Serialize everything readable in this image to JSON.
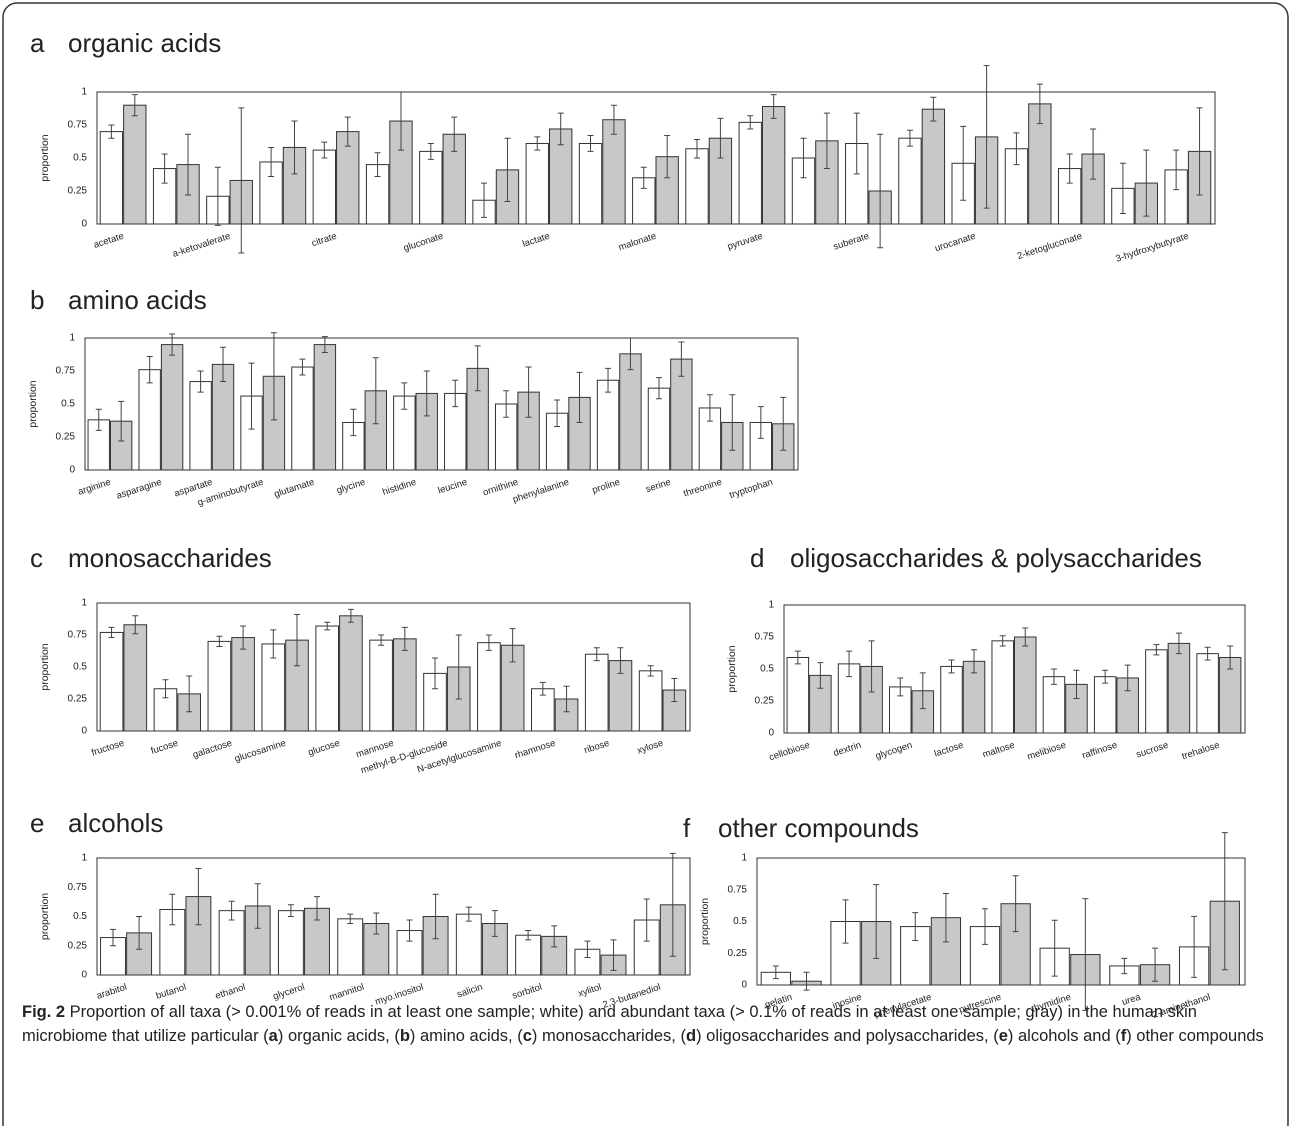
{
  "chart_data": [
    {
      "type": "bar",
      "label": "a",
      "title": "organic acids",
      "ylabel": "proportion",
      "categories": [
        "acetate",
        null,
        "a-ketovalerate",
        null,
        "citrate",
        null,
        "gluconate",
        null,
        "lactate",
        null,
        "malonate",
        null,
        "pyruvate",
        null,
        "suberate",
        null,
        "urocanate",
        null,
        "2-ketogluconate",
        null,
        "3-hydroxybutyrate"
      ],
      "series": [
        {
          "color": "#ffffff",
          "values": [
            0.7,
            0.42,
            0.21,
            0.47,
            0.56,
            0.45,
            0.55,
            0.18,
            0.61,
            0.61,
            0.35,
            0.57,
            0.77,
            0.5,
            0.61,
            0.65,
            0.46,
            0.57,
            0.42,
            0.27,
            0.41
          ],
          "errors": [
            0.05,
            0.11,
            0.22,
            0.11,
            0.06,
            0.09,
            0.06,
            0.13,
            0.05,
            0.06,
            0.08,
            0.07,
            0.05,
            0.15,
            0.23,
            0.06,
            0.28,
            0.12,
            0.11,
            0.19,
            0.15
          ]
        },
        {
          "color": "#c8c8c8",
          "values": [
            0.9,
            0.45,
            0.33,
            0.58,
            0.7,
            0.78,
            0.68,
            0.41,
            0.72,
            0.79,
            0.51,
            0.65,
            0.89,
            0.63,
            0.25,
            0.87,
            0.66,
            0.91,
            0.53,
            0.31,
            0.55
          ],
          "errors": [
            0.08,
            0.23,
            0.55,
            0.2,
            0.11,
            0.22,
            0.13,
            0.24,
            0.12,
            0.11,
            0.16,
            0.15,
            0.09,
            0.21,
            0.43,
            0.09,
            0.54,
            0.15,
            0.19,
            0.25,
            0.33
          ]
        }
      ],
      "ylim": [
        0,
        1
      ],
      "yticks": [
        0,
        0.25,
        0.5,
        0.75,
        1
      ]
    },
    {
      "type": "bar",
      "label": "b",
      "title": "amino acids",
      "ylabel": "proportion",
      "categories": [
        "arginine",
        "asparagine",
        "aspartate",
        "g-aminobutyrate",
        "glutamate",
        "glycine",
        "histidine",
        "leucine",
        "ornithine",
        "phenylalanine",
        "proline",
        "serine",
        "threonine",
        "tryptophan"
      ],
      "series": [
        {
          "color": "#ffffff",
          "values": [
            0.38,
            0.76,
            0.67,
            0.56,
            0.78,
            0.36,
            0.56,
            0.58,
            0.5,
            0.43,
            0.68,
            0.62,
            0.47,
            0.36
          ],
          "errors": [
            0.08,
            0.1,
            0.08,
            0.25,
            0.06,
            0.1,
            0.1,
            0.1,
            0.1,
            0.1,
            0.09,
            0.08,
            0.1,
            0.12
          ]
        },
        {
          "color": "#c8c8c8",
          "values": [
            0.37,
            0.95,
            0.8,
            0.71,
            0.95,
            0.6,
            0.58,
            0.77,
            0.59,
            0.55,
            0.88,
            0.84,
            0.36,
            0.35
          ],
          "errors": [
            0.15,
            0.08,
            0.13,
            0.33,
            0.06,
            0.25,
            0.17,
            0.17,
            0.19,
            0.19,
            0.12,
            0.13,
            0.21,
            0.2
          ]
        }
      ],
      "ylim": [
        0,
        1
      ],
      "yticks": [
        0,
        0.25,
        0.5,
        0.75,
        1
      ]
    },
    {
      "type": "bar",
      "label": "c",
      "title": "monosaccharides",
      "ylabel": "proportion",
      "categories": [
        "fructose",
        "fucose",
        "galactose",
        "glucosamine",
        "glucose",
        "mannose",
        "methyl-B-D-glucoside",
        "N-acetylglucosamine",
        "rhamnose",
        "ribose",
        "xylose"
      ],
      "series": [
        {
          "color": "#ffffff",
          "values": [
            0.77,
            0.33,
            0.7,
            0.68,
            0.82,
            0.71,
            0.45,
            0.69,
            0.33,
            0.6,
            0.47
          ],
          "errors": [
            0.04,
            0.07,
            0.04,
            0.11,
            0.03,
            0.04,
            0.12,
            0.06,
            0.05,
            0.05,
            0.04
          ]
        },
        {
          "color": "#c8c8c8",
          "values": [
            0.83,
            0.29,
            0.73,
            0.71,
            0.9,
            0.72,
            0.5,
            0.67,
            0.25,
            0.55,
            0.32
          ],
          "errors": [
            0.07,
            0.14,
            0.09,
            0.2,
            0.05,
            0.09,
            0.25,
            0.13,
            0.1,
            0.1,
            0.09
          ]
        }
      ],
      "ylim": [
        0,
        1
      ],
      "yticks": [
        0,
        0.25,
        0.5,
        0.75,
        1
      ]
    },
    {
      "type": "bar",
      "label": "d",
      "title": "oligosaccharides & polysaccharides",
      "ylabel": "proportion",
      "categories": [
        "cellobiose",
        "dextrin",
        "glycogen",
        "lactose",
        "maltose",
        "melibiose",
        "raffinose",
        "sucrose",
        "trehalose"
      ],
      "series": [
        {
          "color": "#ffffff",
          "values": [
            0.59,
            0.54,
            0.36,
            0.52,
            0.72,
            0.44,
            0.44,
            0.65,
            0.62
          ],
          "errors": [
            0.05,
            0.1,
            0.07,
            0.05,
            0.04,
            0.06,
            0.05,
            0.04,
            0.05
          ]
        },
        {
          "color": "#c8c8c8",
          "values": [
            0.45,
            0.52,
            0.33,
            0.56,
            0.75,
            0.38,
            0.43,
            0.7,
            0.59
          ],
          "errors": [
            0.1,
            0.2,
            0.14,
            0.09,
            0.07,
            0.11,
            0.1,
            0.08,
            0.09
          ]
        }
      ],
      "ylim": [
        0,
        1
      ],
      "yticks": [
        0,
        0.25,
        0.5,
        0.75,
        1
      ]
    },
    {
      "type": "bar",
      "label": "e",
      "title": "alcohols",
      "ylabel": "proportion",
      "categories": [
        "arabitol",
        "butanol",
        "ethanol",
        "glycerol",
        "mannitol",
        "myo.inositol",
        "salicin",
        "sorbitol",
        "xylitol",
        "2,3-butanediol"
      ],
      "series": [
        {
          "color": "#ffffff",
          "values": [
            0.32,
            0.56,
            0.55,
            0.55,
            0.48,
            0.38,
            0.52,
            0.34,
            0.22,
            0.47
          ],
          "errors": [
            0.07,
            0.13,
            0.08,
            0.05,
            0.04,
            0.09,
            0.06,
            0.04,
            0.07,
            0.18
          ]
        },
        {
          "color": "#c8c8c8",
          "values": [
            0.36,
            0.67,
            0.59,
            0.57,
            0.44,
            0.5,
            0.44,
            0.33,
            0.17,
            0.6
          ],
          "errors": [
            0.14,
            0.24,
            0.19,
            0.1,
            0.09,
            0.19,
            0.11,
            0.09,
            0.13,
            0.44
          ]
        }
      ],
      "ylim": [
        0,
        1
      ],
      "yticks": [
        0,
        0.25,
        0.5,
        0.75,
        1
      ]
    },
    {
      "type": "bar",
      "label": "f",
      "title": "other compounds",
      "ylabel": "proportion",
      "categories": [
        "gelatin",
        "inosine",
        "phenylacetate",
        "putrescine",
        "thymidine",
        "urea",
        "2-aminethanol"
      ],
      "series": [
        {
          "color": "#ffffff",
          "values": [
            0.1,
            0.5,
            0.46,
            0.46,
            0.29,
            0.15,
            0.3
          ],
          "errors": [
            0.05,
            0.17,
            0.11,
            0.14,
            0.22,
            0.06,
            0.24
          ]
        },
        {
          "color": "#c8c8c8",
          "values": [
            0.03,
            0.5,
            0.53,
            0.64,
            0.24,
            0.16,
            0.66
          ],
          "errors": [
            0.07,
            0.29,
            0.19,
            0.22,
            0.44,
            0.13,
            0.54
          ]
        }
      ],
      "ylim": [
        0,
        1
      ],
      "yticks": [
        0,
        0.25,
        0.5,
        0.75,
        1
      ]
    }
  ],
  "caption": {
    "label": "Fig. 2",
    "segments": [
      " Proportion of all taxa (> 0.001% of reads in at least one sample; white) and abundant taxa (> 0.1% of reads in at least one sample; gray) in the human skin microbiome that utilize particular (",
      "a",
      ") organic acids, (",
      "b",
      ") amino acids, (",
      "c",
      ") monosaccharides, (",
      "d",
      ") oligosaccharides and polysaccharides, (",
      "e",
      ") alcohols and (",
      "f",
      ") other compounds"
    ]
  }
}
